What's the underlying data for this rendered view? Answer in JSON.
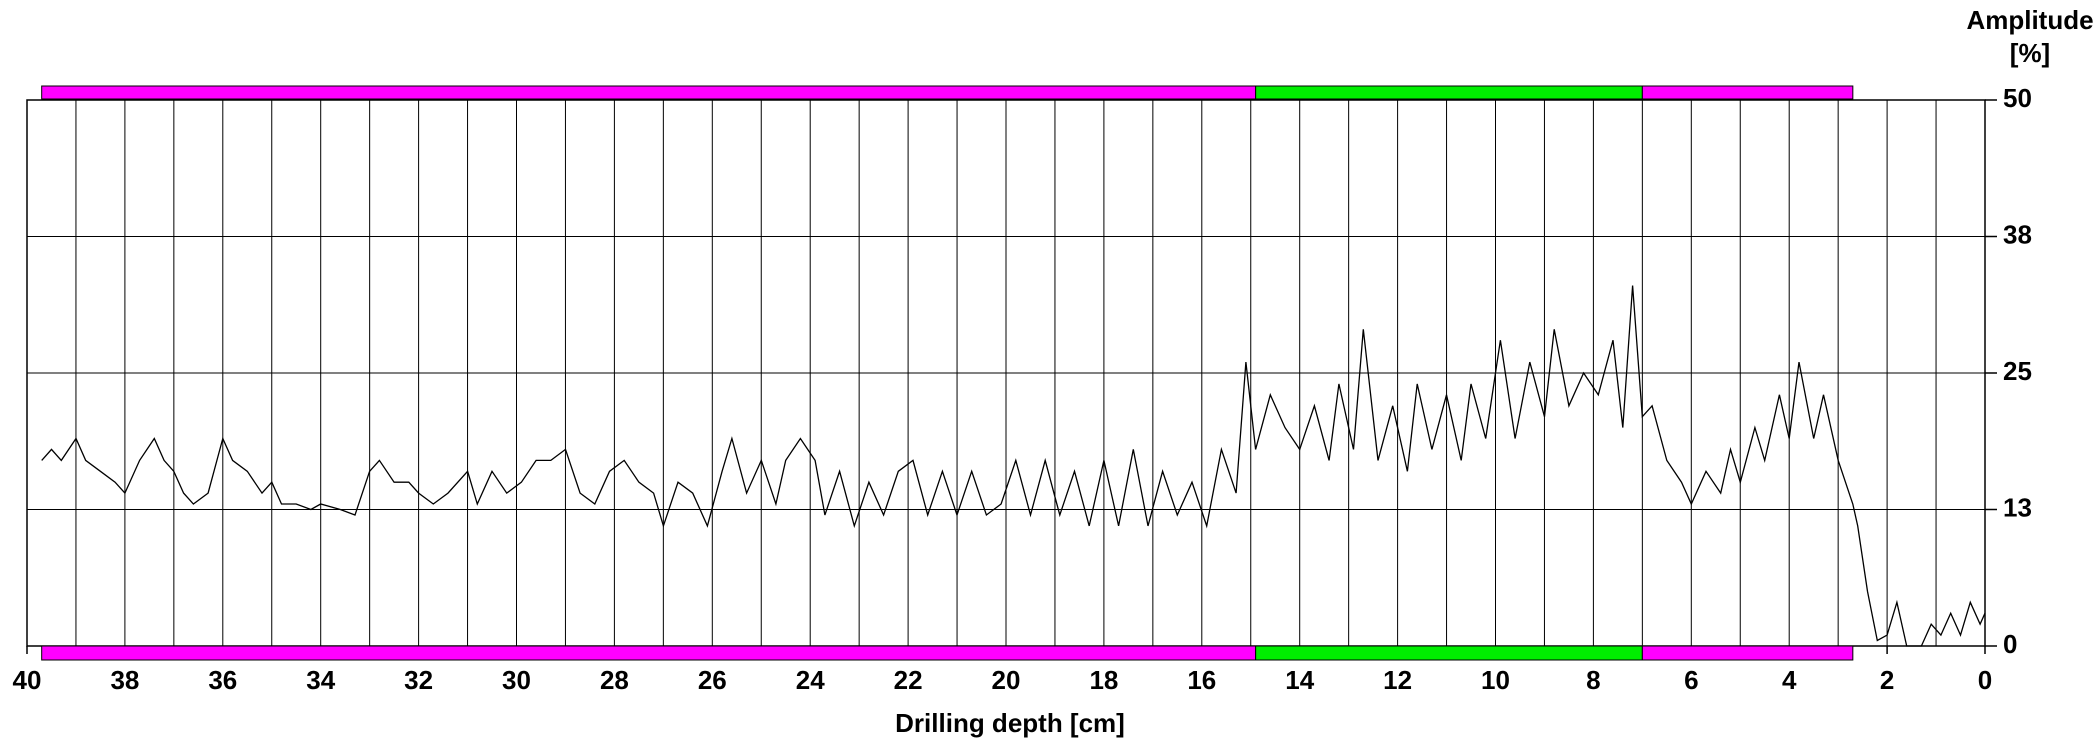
{
  "chart_data": {
    "type": "line",
    "xlabel": "Drilling depth [cm]",
    "ylabel_lines": [
      "Amplitude",
      "[%]"
    ],
    "xlim": [
      40,
      0
    ],
    "xticks": [
      40,
      38,
      36,
      34,
      32,
      30,
      28,
      26,
      24,
      22,
      20,
      18,
      16,
      14,
      12,
      10,
      8,
      6,
      4,
      2,
      0
    ],
    "xgrid": [
      39,
      38,
      37,
      36,
      35,
      34,
      33,
      32,
      31,
      30,
      29,
      28,
      27,
      26,
      25,
      24,
      23,
      22,
      21,
      20,
      19,
      18,
      17,
      16,
      15,
      14,
      13,
      12,
      11,
      10,
      9,
      8,
      7,
      6,
      5,
      4,
      3,
      2,
      1
    ],
    "ylim": [
      0,
      50
    ],
    "yticks": [
      0,
      {
        "value": 12.5,
        "label": "13"
      },
      25,
      {
        "value": 37.5,
        "label": "38"
      },
      50
    ],
    "grid": true,
    "bands": [
      {
        "start": 39.7,
        "end": 14.9,
        "color": "#ff00ff"
      },
      {
        "start": 14.9,
        "end": 7.0,
        "color": "#00ee00"
      },
      {
        "start": 7.0,
        "end": 2.7,
        "color": "#ff00ff"
      }
    ],
    "x": [
      39.7,
      39.5,
      39.3,
      39.0,
      38.8,
      38.5,
      38.2,
      38.0,
      37.7,
      37.4,
      37.2,
      37.0,
      36.8,
      36.6,
      36.3,
      36.0,
      35.8,
      35.5,
      35.2,
      35.0,
      34.8,
      34.5,
      34.2,
      34.0,
      33.6,
      33.3,
      33.0,
      32.8,
      32.5,
      32.2,
      32.0,
      31.7,
      31.4,
      31.0,
      30.8,
      30.5,
      30.2,
      29.9,
      29.6,
      29.3,
      29.0,
      28.7,
      28.4,
      28.1,
      27.8,
      27.5,
      27.2,
      27.0,
      26.7,
      26.4,
      26.1,
      25.8,
      25.6,
      25.3,
      25.0,
      24.7,
      24.5,
      24.2,
      23.9,
      23.7,
      23.4,
      23.1,
      22.8,
      22.5,
      22.2,
      21.9,
      21.6,
      21.3,
      21.0,
      20.7,
      20.4,
      20.1,
      19.8,
      19.5,
      19.2,
      18.9,
      18.6,
      18.3,
      18.0,
      17.7,
      17.4,
      17.1,
      16.8,
      16.5,
      16.2,
      15.9,
      15.6,
      15.3,
      15.1,
      14.9,
      14.6,
      14.3,
      14.0,
      13.7,
      13.4,
      13.2,
      12.9,
      12.7,
      12.4,
      12.1,
      11.8,
      11.6,
      11.3,
      11.0,
      10.7,
      10.5,
      10.2,
      9.9,
      9.6,
      9.3,
      9.0,
      8.8,
      8.5,
      8.2,
      7.9,
      7.6,
      7.4,
      7.2,
      7.0,
      6.8,
      6.5,
      6.2,
      6.0,
      5.7,
      5.4,
      5.2,
      5.0,
      4.7,
      4.5,
      4.2,
      4.0,
      3.8,
      3.5,
      3.3,
      3.0,
      2.7,
      2.6,
      2.4,
      2.2,
      2.0,
      1.8,
      1.6,
      1.3,
      1.1,
      0.9,
      0.7,
      0.5,
      0.3,
      0.1,
      0.0
    ],
    "series": [
      {
        "color": "#000000",
        "values": [
          17,
          18,
          17,
          19,
          17,
          16,
          15,
          14,
          17,
          19,
          17,
          16,
          14,
          13,
          14,
          19,
          17,
          16,
          14,
          15,
          13,
          13,
          12.5,
          13,
          12.5,
          12,
          16,
          17,
          15,
          15,
          14,
          13,
          14,
          16,
          13,
          16,
          14,
          15,
          17,
          17,
          18,
          14,
          13,
          16,
          17,
          15,
          14,
          11,
          15,
          14,
          11,
          16,
          19,
          14,
          17,
          13,
          17,
          19,
          17,
          12,
          16,
          11,
          15,
          12,
          16,
          17,
          12,
          16,
          12,
          16,
          12,
          13,
          17,
          12,
          17,
          12,
          16,
          11,
          17,
          11,
          18,
          11,
          16,
          12,
          15,
          11,
          18,
          14,
          26,
          18,
          23,
          20,
          18,
          22,
          17,
          24,
          18,
          29,
          17,
          22,
          16,
          24,
          18,
          23,
          17,
          24,
          19,
          28,
          19,
          26,
          21,
          29,
          22,
          25,
          23,
          28,
          20,
          33,
          21,
          22,
          17,
          15,
          13,
          16,
          14,
          18,
          15,
          20,
          17,
          23,
          19,
          26,
          19,
          23,
          17,
          13,
          11,
          5,
          0.5,
          1,
          4,
          0,
          0,
          2,
          1,
          3,
          1,
          4,
          2,
          3
        ]
      }
    ]
  }
}
